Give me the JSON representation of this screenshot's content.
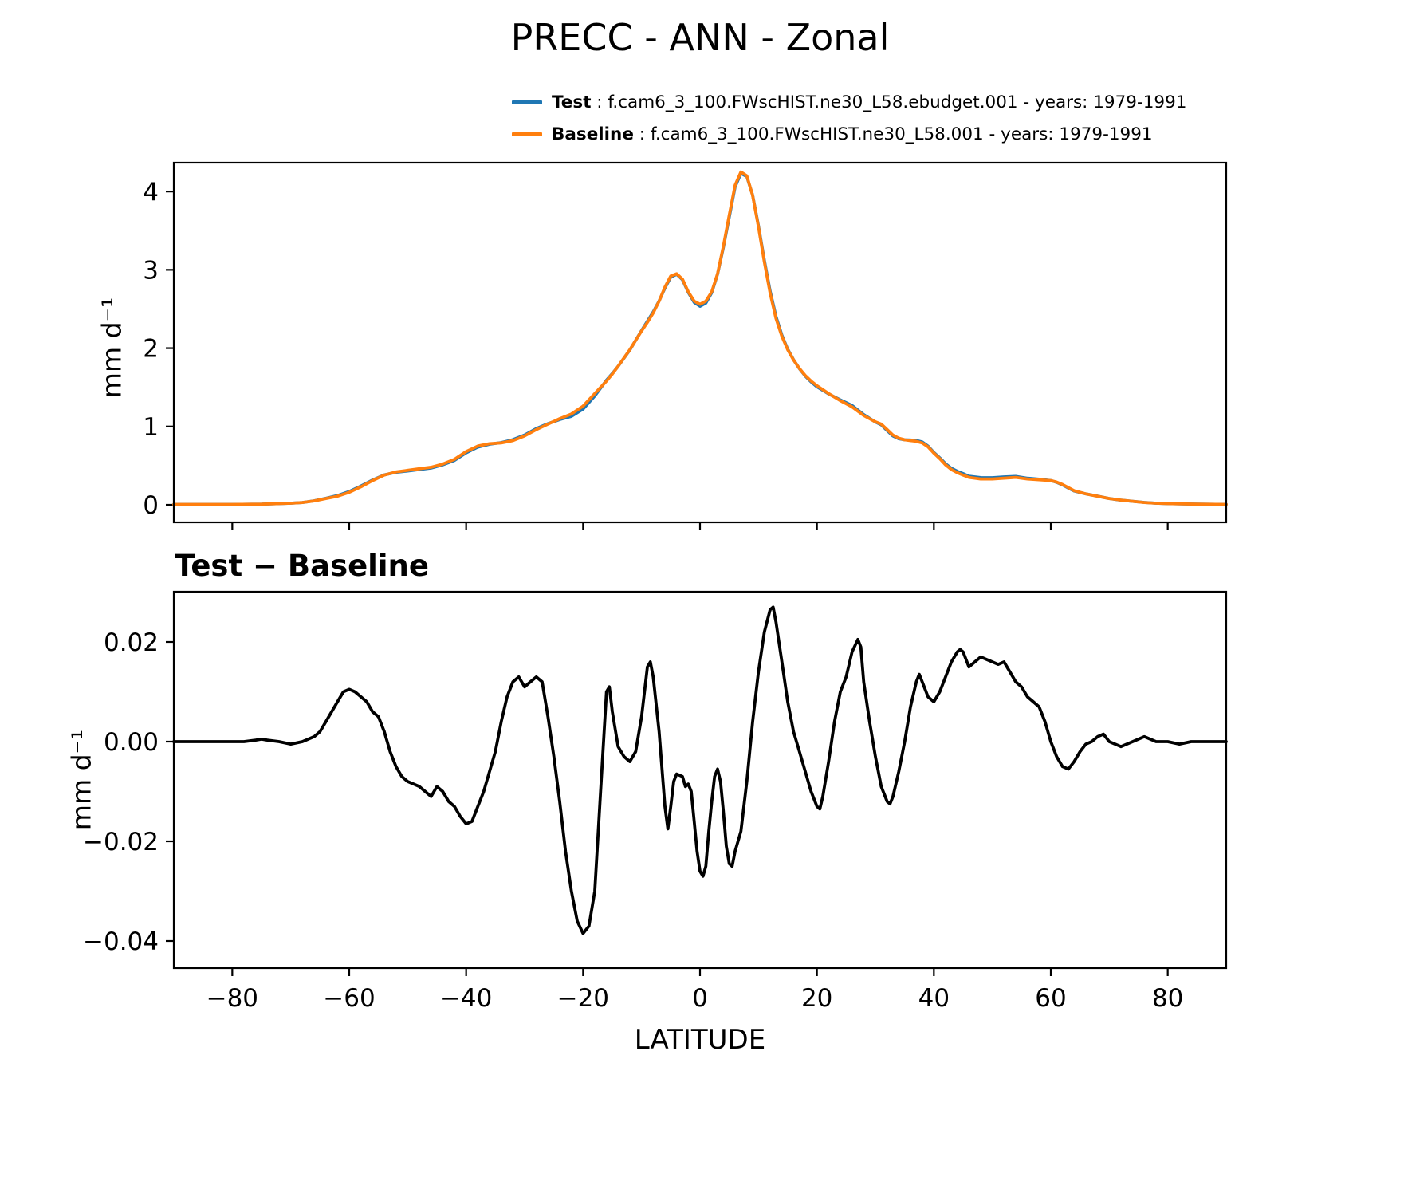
{
  "figure": {
    "title": "PRECC - ANN - Zonal",
    "background": "#ffffff"
  },
  "legend": {
    "items": [
      {
        "label": "Test",
        "text": " : f.cam6_3_100.FWscHIST.ne30_L58.ebudget.001 - years: 1979-1991",
        "color": "#1f77b4"
      },
      {
        "label": "Baseline",
        "text": " : f.cam6_3_100.FWscHIST.ne30_L58.001 - years: 1979-1991",
        "color": "#ff7f0e"
      }
    ]
  },
  "top_chart": {
    "ylabel": "mm d⁻¹"
  },
  "bottom_chart": {
    "title": "Test − Baseline",
    "ylabel": "mm d⁻¹",
    "xlabel": "LATITUDE"
  },
  "chart_data": [
    {
      "id": "zonal-mean",
      "type": "line",
      "title": "PRECC - ANN - Zonal",
      "xlabel": "",
      "ylabel": "mm d⁻¹",
      "xlim": [
        -90,
        90
      ],
      "ylim": [
        -0.224,
        4.368
      ],
      "grid": false,
      "legend_position": "upper right above axes, no frame",
      "xticks": {
        "values": [
          -80,
          -60,
          -40,
          -20,
          0,
          20,
          40,
          60,
          80
        ],
        "labels": []
      },
      "yticks": {
        "values": [
          0,
          1,
          2,
          3,
          4
        ],
        "labels": [
          "0",
          "1",
          "2",
          "3",
          "4"
        ]
      },
      "x": [
        -90,
        -85,
        -80,
        -75,
        -70,
        -68,
        -66,
        -64,
        -62,
        -60,
        -58,
        -56,
        -54,
        -52,
        -50,
        -48,
        -46,
        -44,
        -42,
        -40,
        -38,
        -36,
        -34,
        -32,
        -30,
        -28,
        -26,
        -24,
        -22,
        -20,
        -18,
        -16,
        -15,
        -14,
        -12,
        -10,
        -9,
        -8,
        -7,
        -6,
        -5,
        -4,
        -3,
        -2,
        -1,
        0,
        1,
        2,
        3,
        4,
        5,
        6,
        7,
        8,
        9,
        10,
        11,
        12,
        13,
        14,
        15,
        16,
        17,
        18,
        19,
        20,
        22,
        24,
        26,
        28,
        30,
        31,
        32,
        33,
        34,
        35,
        36,
        37,
        38,
        39,
        40,
        41,
        42,
        43,
        44,
        45,
        46,
        47,
        48,
        50,
        52,
        54,
        56,
        58,
        60,
        61,
        62,
        63,
        64,
        65,
        66,
        68,
        70,
        72,
        74,
        76,
        78,
        80,
        85,
        90
      ],
      "series": [
        {
          "name": "Test",
          "color": "#1f77b4",
          "values": [
            0.005,
            0.005,
            0.005,
            0.008,
            0.02,
            0.03,
            0.051,
            0.084,
            0.118,
            0.17,
            0.239,
            0.316,
            0.382,
            0.415,
            0.432,
            0.451,
            0.469,
            0.51,
            0.567,
            0.664,
            0.737,
            0.774,
            0.794,
            0.832,
            0.891,
            0.973,
            1.035,
            1.088,
            1.13,
            1.222,
            1.39,
            1.59,
            1.676,
            1.769,
            1.976,
            2.225,
            2.345,
            2.463,
            2.602,
            2.767,
            2.907,
            2.944,
            2.873,
            2.711,
            2.584,
            2.534,
            2.575,
            2.708,
            2.945,
            3.286,
            3.675,
            4.058,
            4.232,
            4.192,
            3.954,
            3.564,
            3.122,
            2.727,
            2.404,
            2.166,
            1.988,
            1.852,
            1.738,
            1.644,
            1.57,
            1.507,
            1.416,
            1.34,
            1.268,
            1.152,
            1.057,
            1.021,
            0.948,
            0.879,
            0.844,
            0.83,
            0.827,
            0.822,
            0.802,
            0.749,
            0.668,
            0.6,
            0.523,
            0.466,
            0.428,
            0.398,
            0.365,
            0.356,
            0.347,
            0.346,
            0.356,
            0.362,
            0.339,
            0.327,
            0.31,
            0.287,
            0.255,
            0.214,
            0.176,
            0.158,
            0.14,
            0.111,
            0.08,
            0.059,
            0.045,
            0.031,
            0.02,
            0.015,
            0.008,
            0.005
          ]
        },
        {
          "name": "Baseline",
          "color": "#ff7f0e",
          "values": [
            0.005,
            0.005,
            0.005,
            0.008,
            0.02,
            0.03,
            0.05,
            0.08,
            0.11,
            0.16,
            0.23,
            0.31,
            0.38,
            0.42,
            0.44,
            0.46,
            0.48,
            0.52,
            0.58,
            0.68,
            0.75,
            0.78,
            0.79,
            0.82,
            0.88,
            0.96,
            1.03,
            1.1,
            1.16,
            1.26,
            1.42,
            1.58,
            1.67,
            1.77,
            1.98,
            2.22,
            2.33,
            2.45,
            2.6,
            2.78,
            2.92,
            2.95,
            2.88,
            2.72,
            2.6,
            2.56,
            2.6,
            2.72,
            2.95,
            3.3,
            3.7,
            4.08,
            4.25,
            4.2,
            3.95,
            3.55,
            3.1,
            2.7,
            2.38,
            2.15,
            1.98,
            1.85,
            1.74,
            1.65,
            1.58,
            1.52,
            1.42,
            1.33,
            1.25,
            1.14,
            1.06,
            1.03,
            0.96,
            0.89,
            0.85,
            0.83,
            0.82,
            0.81,
            0.79,
            0.74,
            0.66,
            0.59,
            0.51,
            0.45,
            0.41,
            0.38,
            0.35,
            0.34,
            0.33,
            0.33,
            0.34,
            0.35,
            0.33,
            0.32,
            0.31,
            0.29,
            0.26,
            0.22,
            0.18,
            0.16,
            0.14,
            0.11,
            0.08,
            0.06,
            0.045,
            0.03,
            0.02,
            0.015,
            0.008,
            0.005
          ]
        }
      ]
    },
    {
      "id": "difference",
      "type": "line",
      "title": "Test − Baseline",
      "xlabel": "LATITUDE",
      "ylabel": "mm d⁻¹",
      "xlim": [
        -90,
        90
      ],
      "ylim": [
        -0.04544,
        0.03008
      ],
      "grid": false,
      "xticks": {
        "values": [
          -80,
          -60,
          -40,
          -20,
          0,
          20,
          40,
          60,
          80
        ],
        "labels": [
          "−80",
          "−60",
          "−40",
          "−20",
          "0",
          "20",
          "40",
          "60",
          "80"
        ]
      },
      "yticks": {
        "values": [
          -0.04,
          -0.02,
          0,
          0.02
        ],
        "labels": [
          "−0.04",
          "−0.02",
          "0.00",
          "0.02"
        ]
      },
      "series": [
        {
          "name": "Test − Baseline",
          "color": "#000000",
          "x": [
            -90,
            -85,
            -80,
            -78,
            -76,
            -75,
            -74,
            -72,
            -70,
            -68,
            -66,
            -65,
            -64,
            -63,
            -62,
            -61,
            -60,
            -59,
            -58,
            -57,
            -56,
            -55,
            -54,
            -53,
            -52,
            -51,
            -50,
            -49,
            -48,
            -47,
            -46,
            -45,
            -44,
            -43,
            -42,
            -41,
            -40,
            -39,
            -38,
            -37,
            -36,
            -35,
            -34,
            -33,
            -32,
            -31,
            -30,
            -29,
            -28,
            -27,
            -26,
            -25,
            -24,
            -23,
            -22,
            -21,
            -20,
            -19,
            -18,
            -17,
            -16,
            -15.5,
            -15,
            -14,
            -13,
            -12,
            -11,
            -10,
            -9,
            -8.5,
            -8,
            -7,
            -6,
            -5.5,
            -5,
            -4.5,
            -4,
            -3,
            -2.5,
            -2,
            -1.5,
            -1,
            -0.5,
            0,
            0.5,
            1,
            1.5,
            2,
            2.5,
            3,
            3.5,
            4,
            4.5,
            5,
            5.5,
            6,
            7,
            8,
            9,
            10,
            11,
            12,
            12.5,
            13,
            14,
            15,
            16,
            17,
            18,
            19,
            20,
            20.5,
            21,
            22,
            23,
            24,
            25,
            26,
            27,
            27.5,
            28,
            29,
            30,
            31,
            32,
            32.5,
            33,
            34,
            35,
            36,
            37,
            37.5,
            38,
            39,
            40,
            41,
            42,
            43,
            44,
            44.5,
            45,
            46,
            47,
            48,
            49,
            50,
            51,
            52,
            53,
            54,
            55,
            56,
            57,
            58,
            59,
            60,
            61,
            62,
            63,
            64,
            65,
            66,
            67,
            68,
            69,
            70,
            71,
            72,
            73,
            74,
            75,
            76,
            77,
            78,
            80,
            82,
            84,
            86,
            88,
            90
          ],
          "values": [
            0,
            0,
            0,
            0,
            0.0003,
            0.0005,
            0.0003,
            0,
            -0.0005,
            0,
            0.001,
            0.002,
            0.004,
            0.006,
            0.008,
            0.01,
            0.0105,
            0.01,
            0.009,
            0.008,
            0.006,
            0.005,
            0.002,
            -0.002,
            -0.005,
            -0.007,
            -0.008,
            -0.0085,
            -0.009,
            -0.01,
            -0.011,
            -0.009,
            -0.01,
            -0.012,
            -0.013,
            -0.015,
            -0.0165,
            -0.016,
            -0.013,
            -0.01,
            -0.006,
            -0.002,
            0.004,
            0.009,
            0.012,
            0.013,
            0.011,
            0.012,
            0.013,
            0.012,
            0.005,
            -0.003,
            -0.012,
            -0.022,
            -0.03,
            -0.036,
            -0.0385,
            -0.037,
            -0.03,
            -0.01,
            0.01,
            0.011,
            0.006,
            -0.001,
            -0.003,
            -0.004,
            -0.002,
            0.005,
            0.015,
            0.016,
            0.013,
            0.002,
            -0.013,
            -0.0175,
            -0.013,
            -0.008,
            -0.0065,
            -0.007,
            -0.009,
            -0.0085,
            -0.01,
            -0.016,
            -0.022,
            -0.026,
            -0.027,
            -0.025,
            -0.018,
            -0.012,
            -0.007,
            -0.0055,
            -0.008,
            -0.014,
            -0.021,
            -0.0245,
            -0.025,
            -0.022,
            -0.018,
            -0.008,
            0.004,
            0.014,
            0.022,
            0.0265,
            0.027,
            0.024,
            0.016,
            0.008,
            0.002,
            -0.002,
            -0.006,
            -0.01,
            -0.013,
            -0.0135,
            -0.011,
            -0.004,
            0.004,
            0.01,
            0.013,
            0.018,
            0.0205,
            0.019,
            0.012,
            0.004,
            -0.003,
            -0.009,
            -0.012,
            -0.0125,
            -0.011,
            -0.006,
            0,
            0.007,
            0.012,
            0.0135,
            0.012,
            0.009,
            0.008,
            0.01,
            0.013,
            0.016,
            0.018,
            0.0185,
            0.018,
            0.015,
            0.016,
            0.017,
            0.0165,
            0.016,
            0.0155,
            0.016,
            0.014,
            0.012,
            0.011,
            0.009,
            0.008,
            0.007,
            0.004,
            0,
            -0.003,
            -0.005,
            -0.0055,
            -0.004,
            -0.002,
            -0.0005,
            0,
            0.001,
            0.0015,
            0,
            -0.0005,
            -0.001,
            -0.0005,
            0,
            0.0005,
            0.001,
            0.0005,
            0,
            0,
            -0.0005,
            0,
            0,
            0,
            0
          ]
        }
      ]
    }
  ]
}
